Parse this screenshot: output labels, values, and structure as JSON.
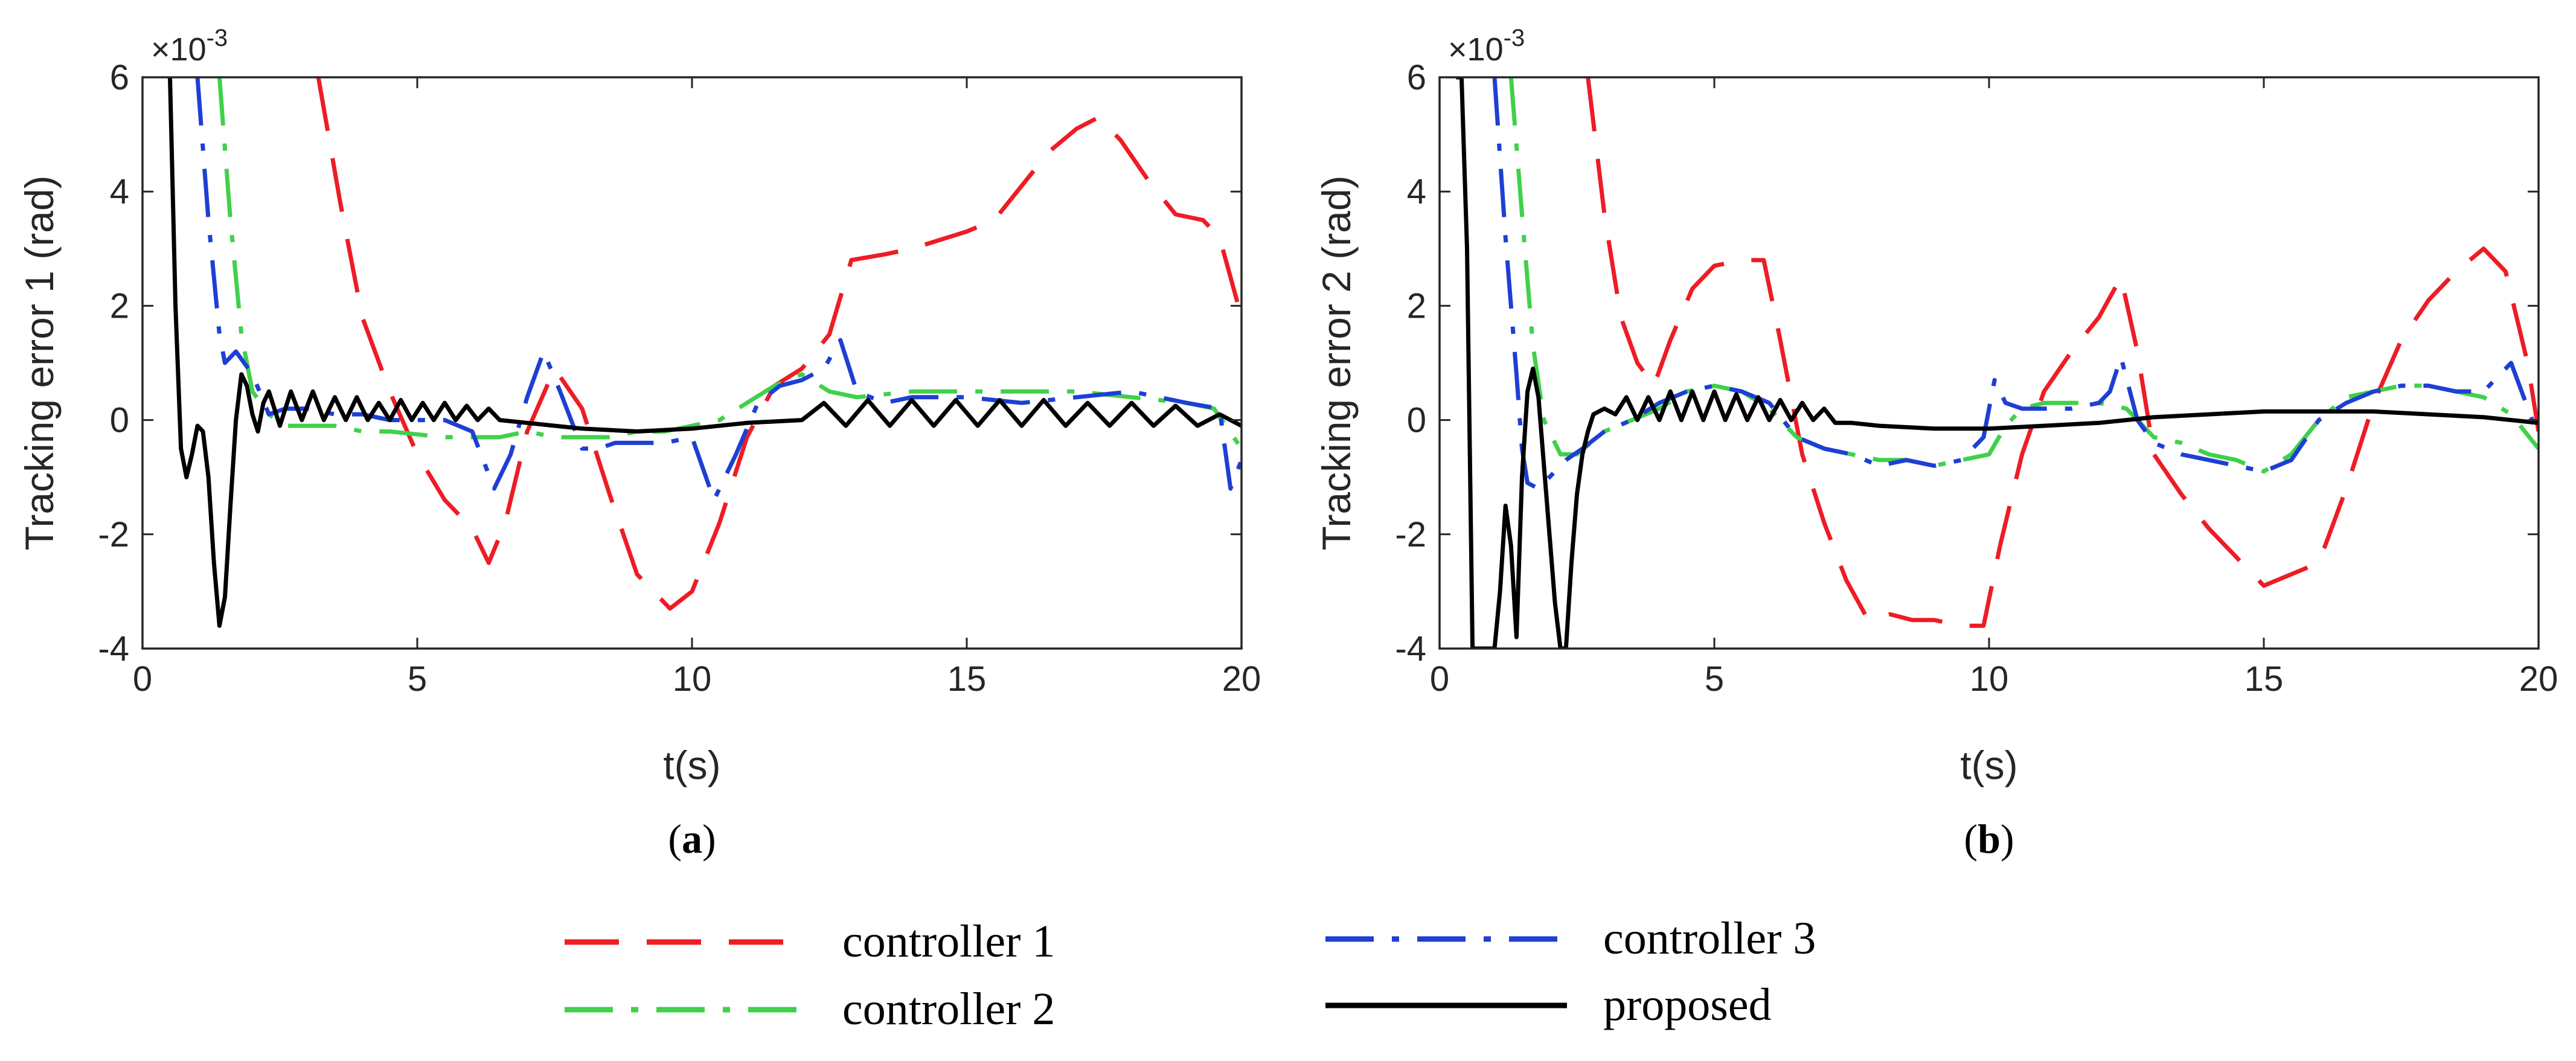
{
  "chart_data": [
    {
      "type": "line",
      "panel_label": "a",
      "ylabel": "Tracking error 1 (rad)",
      "xlabel": "t(s)",
      "exponent": "×10",
      "exponent_power": "-3",
      "xlim": [
        0,
        20
      ],
      "ylim": [
        -4,
        6
      ],
      "xticks": [
        0,
        5,
        10,
        15,
        20
      ],
      "yticks": [
        -4,
        -2,
        0,
        2,
        4,
        6
      ],
      "series": [
        {
          "name": "controller 1",
          "color": "#ee1c25",
          "style": "dashed",
          "x": [
            3.2,
            3.6,
            4.0,
            4.5,
            5.0,
            5.5,
            6.0,
            6.3,
            6.6,
            7.0,
            7.5,
            8.0,
            8.5,
            9.0,
            9.6,
            10.0,
            10.5,
            11.0,
            11.5,
            12.0,
            12.5,
            12.9,
            13.5,
            14.0,
            15.0,
            15.5,
            16.0,
            16.5,
            17.0,
            17.4,
            17.8,
            18.3,
            18.8,
            19.3,
            19.6,
            20.0
          ],
          "y": [
            6.0,
            3.8,
            1.8,
            0.5,
            -0.6,
            -1.4,
            -1.9,
            -2.5,
            -1.8,
            -0.2,
            0.9,
            0.2,
            -1.3,
            -2.7,
            -3.3,
            -3.0,
            -1.8,
            -0.3,
            0.6,
            0.9,
            1.5,
            2.8,
            2.9,
            3.0,
            3.3,
            3.5,
            4.1,
            4.7,
            5.1,
            5.3,
            4.9,
            4.2,
            3.6,
            3.5,
            3.2,
            1.8
          ]
        },
        {
          "name": "controller 2",
          "color": "#3fd14a",
          "style": "dashdot",
          "x": [
            1.4,
            1.6,
            1.8,
            2.0,
            2.3,
            2.6,
            3.0,
            3.5,
            4.0,
            4.5,
            5.0,
            5.5,
            6.0,
            6.5,
            7.0,
            7.5,
            8.0,
            8.5,
            9.0,
            9.5,
            10.0,
            10.5,
            11.0,
            11.5,
            12.0,
            12.5,
            13.0,
            14.0,
            15.0,
            16.0,
            17.0,
            18.0,
            19.0,
            19.5,
            20.0
          ],
          "y": [
            6.0,
            3.5,
            1.5,
            0.5,
            0.1,
            -0.1,
            -0.1,
            -0.1,
            -0.2,
            -0.2,
            -0.25,
            -0.3,
            -0.3,
            -0.3,
            -0.2,
            -0.3,
            -0.3,
            -0.3,
            -0.2,
            -0.2,
            -0.1,
            0.0,
            0.3,
            0.6,
            0.8,
            0.5,
            0.4,
            0.5,
            0.5,
            0.5,
            0.5,
            0.4,
            0.3,
            0.2,
            -0.5
          ]
        },
        {
          "name": "controller 3",
          "color": "#1e3fd4",
          "style": "dashdot",
          "x": [
            1.0,
            1.2,
            1.4,
            1.5,
            1.7,
            2.0,
            2.3,
            2.6,
            3.0,
            3.5,
            4.0,
            4.5,
            5.0,
            5.5,
            6.0,
            6.4,
            6.7,
            7.0,
            7.3,
            7.6,
            8.0,
            8.3,
            8.6,
            9.0,
            9.5,
            10.0,
            10.4,
            10.8,
            11.2,
            11.6,
            12.0,
            12.4,
            12.7,
            13.0,
            13.5,
            14.0,
            15.0,
            16.0,
            17.0,
            18.0,
            19.0,
            19.6,
            19.8,
            20.0
          ],
          "y": [
            6.0,
            3.5,
            1.5,
            1.0,
            1.2,
            0.8,
            0.1,
            0.2,
            0.2,
            0.1,
            0.1,
            0.0,
            0.0,
            0.0,
            -0.2,
            -1.2,
            -0.6,
            0.4,
            1.2,
            0.5,
            -0.5,
            -0.5,
            -0.4,
            -0.4,
            -0.4,
            -0.3,
            -1.4,
            -0.6,
            0.3,
            0.6,
            0.7,
            0.9,
            1.4,
            0.5,
            0.3,
            0.4,
            0.4,
            0.3,
            0.4,
            0.5,
            0.3,
            0.2,
            -1.2,
            -0.7
          ]
        },
        {
          "name": "proposed",
          "color": "#000000",
          "style": "solid",
          "x": [
            0.5,
            0.6,
            0.7,
            0.8,
            0.9,
            1.0,
            1.1,
            1.2,
            1.3,
            1.4,
            1.5,
            1.6,
            1.7,
            1.8,
            1.9,
            2.0,
            2.1,
            2.2,
            2.3,
            2.4,
            2.5,
            2.7,
            2.9,
            3.1,
            3.3,
            3.5,
            3.7,
            3.9,
            4.1,
            4.3,
            4.5,
            4.7,
            4.9,
            5.1,
            5.3,
            5.5,
            5.7,
            5.9,
            6.1,
            6.3,
            6.5,
            7.0,
            8.0,
            9.0,
            10.0,
            11.0,
            12.0,
            12.4,
            12.8,
            13.2,
            13.6,
            14.0,
            14.4,
            14.8,
            15.2,
            15.6,
            16.0,
            16.4,
            16.8,
            17.2,
            17.6,
            18.0,
            18.4,
            18.8,
            19.2,
            19.6,
            20.0
          ],
          "y": [
            6.0,
            2.0,
            -0.5,
            -1.0,
            -0.6,
            -0.1,
            -0.2,
            -1.0,
            -2.5,
            -3.6,
            -3.1,
            -1.5,
            0.0,
            0.8,
            0.6,
            0.1,
            -0.2,
            0.3,
            0.5,
            0.2,
            -0.1,
            0.5,
            0.0,
            0.5,
            0.0,
            0.4,
            0.0,
            0.4,
            0.0,
            0.3,
            0.0,
            0.35,
            0.0,
            0.3,
            0.0,
            0.3,
            0.0,
            0.25,
            0.0,
            0.2,
            0.0,
            -0.05,
            -0.15,
            -0.2,
            -0.15,
            -0.05,
            0.0,
            0.3,
            -0.1,
            0.35,
            -0.1,
            0.35,
            -0.1,
            0.35,
            -0.1,
            0.35,
            -0.1,
            0.35,
            -0.1,
            0.3,
            -0.1,
            0.3,
            -0.1,
            0.25,
            -0.1,
            0.1,
            -0.1
          ]
        }
      ]
    },
    {
      "type": "line",
      "panel_label": "b",
      "ylabel": "Tracking error 2 (rad)",
      "xlabel": "t(s)",
      "exponent": "×10",
      "exponent_power": "-3",
      "xlim": [
        0,
        20
      ],
      "ylim": [
        -4,
        6
      ],
      "xticks": [
        0,
        5,
        10,
        15,
        20
      ],
      "yticks": [
        -4,
        -2,
        0,
        2,
        4,
        6
      ],
      "series": [
        {
          "name": "controller 1",
          "color": "#ee1c25",
          "style": "dashed",
          "x": [
            2.7,
            3.0,
            3.3,
            3.6,
            3.9,
            4.2,
            4.6,
            5.0,
            5.5,
            5.9,
            6.2,
            6.6,
            7.0,
            7.4,
            7.8,
            8.2,
            8.6,
            9.0,
            9.5,
            9.9,
            10.2,
            10.6,
            11.0,
            11.5,
            12.0,
            12.4,
            12.7,
            13.0,
            13.5,
            14.0,
            14.5,
            15.0,
            15.5,
            16.0,
            16.5,
            17.0,
            17.5,
            18.0,
            18.5,
            19.0,
            19.4,
            19.8,
            20.0
          ],
          "y": [
            6.0,
            3.6,
            1.8,
            1.0,
            0.6,
            1.4,
            2.3,
            2.7,
            2.8,
            2.8,
            1.4,
            -0.6,
            -1.8,
            -2.8,
            -3.5,
            -3.4,
            -3.5,
            -3.5,
            -3.6,
            -3.6,
            -2.2,
            -0.6,
            0.5,
            1.2,
            1.8,
            2.5,
            1.2,
            -0.6,
            -1.3,
            -1.9,
            -2.4,
            -2.9,
            -2.7,
            -2.5,
            -1.2,
            0.3,
            1.4,
            2.1,
            2.6,
            3.0,
            2.6,
            1.0,
            -0.2
          ]
        },
        {
          "name": "controller 2",
          "color": "#3fd14a",
          "style": "dashdot",
          "x": [
            1.3,
            1.5,
            1.7,
            1.9,
            2.2,
            2.5,
            3.0,
            3.5,
            4.0,
            4.5,
            5.0,
            5.5,
            6.0,
            6.5,
            7.0,
            7.5,
            8.0,
            8.5,
            9.0,
            9.5,
            10.0,
            10.3,
            10.6,
            11.0,
            11.5,
            12.0,
            12.5,
            13.0,
            13.5,
            14.0,
            14.5,
            15.0,
            15.5,
            16.0,
            16.5,
            17.0,
            17.5,
            18.0,
            18.5,
            19.0,
            19.5,
            20.0
          ],
          "y": [
            6.0,
            3.6,
            1.3,
            0.0,
            -0.6,
            -0.6,
            -0.2,
            0.0,
            0.2,
            0.5,
            0.6,
            0.5,
            0.2,
            -0.3,
            -0.5,
            -0.6,
            -0.7,
            -0.7,
            -0.8,
            -0.7,
            -0.6,
            -0.1,
            0.2,
            0.3,
            0.3,
            0.3,
            0.2,
            -0.3,
            -0.4,
            -0.6,
            -0.7,
            -0.9,
            -0.6,
            0.0,
            0.4,
            0.5,
            0.6,
            0.6,
            0.5,
            0.4,
            0.1,
            -0.5
          ]
        },
        {
          "name": "controller 3",
          "color": "#1e3fd4",
          "style": "dashdot",
          "x": [
            1.0,
            1.2,
            1.4,
            1.5,
            1.6,
            1.8,
            2.0,
            2.3,
            2.6,
            3.0,
            3.5,
            4.0,
            4.5,
            5.0,
            5.5,
            6.0,
            6.5,
            7.0,
            7.5,
            8.0,
            8.5,
            9.0,
            9.5,
            9.9,
            10.1,
            10.3,
            10.6,
            11.0,
            11.5,
            12.0,
            12.2,
            12.4,
            12.7,
            13.0,
            13.5,
            14.0,
            14.5,
            15.0,
            15.5,
            16.0,
            16.5,
            17.0,
            17.5,
            18.0,
            18.5,
            19.0,
            19.5,
            20.0
          ],
          "y": [
            6.0,
            3.2,
            0.8,
            -0.5,
            -1.1,
            -1.2,
            -1.0,
            -0.7,
            -0.5,
            -0.2,
            0.0,
            0.3,
            0.5,
            0.6,
            0.5,
            0.3,
            -0.3,
            -0.5,
            -0.6,
            -0.8,
            -0.7,
            -0.8,
            -0.7,
            -0.3,
            0.7,
            0.3,
            0.2,
            0.2,
            0.2,
            0.3,
            0.5,
            1.1,
            0.0,
            -0.4,
            -0.6,
            -0.7,
            -0.8,
            -0.9,
            -0.7,
            0.0,
            0.3,
            0.5,
            0.6,
            0.6,
            0.5,
            0.5,
            1.0,
            -0.3
          ]
        },
        {
          "name": "proposed",
          "color": "#000000",
          "style": "solid",
          "x": [
            0.3,
            0.4,
            0.5,
            0.6,
            0.7,
            0.8,
            0.9,
            1.0,
            1.1,
            1.2,
            1.3,
            1.4,
            1.5,
            1.6,
            1.7,
            1.8,
            1.9,
            2.0,
            2.1,
            2.2,
            2.3,
            2.4,
            2.5,
            2.6,
            2.7,
            2.8,
            3.0,
            3.2,
            3.4,
            3.6,
            3.8,
            4.0,
            4.2,
            4.4,
            4.6,
            4.8,
            5.0,
            5.2,
            5.4,
            5.6,
            5.8,
            6.0,
            6.2,
            6.4,
            6.6,
            6.8,
            7.0,
            7.2,
            7.5,
            8.0,
            9.0,
            10.0,
            11.0,
            12.0,
            13.0,
            14.0,
            15.0,
            16.0,
            17.0,
            18.0,
            19.0,
            20.0
          ],
          "y": [
            6.0,
            6.0,
            3.0,
            -4.0,
            -4.0,
            -4.0,
            -4.0,
            -4.0,
            -3.0,
            -1.5,
            -2.2,
            -3.8,
            -1.0,
            0.5,
            0.9,
            0.4,
            -0.8,
            -2.0,
            -3.2,
            -4.0,
            -4.0,
            -2.5,
            -1.3,
            -0.6,
            -0.2,
            0.1,
            0.2,
            0.1,
            0.4,
            0.0,
            0.4,
            0.0,
            0.5,
            0.0,
            0.5,
            0.0,
            0.5,
            0.0,
            0.45,
            0.0,
            0.4,
            0.0,
            0.35,
            0.0,
            0.3,
            0.0,
            0.2,
            -0.05,
            -0.05,
            -0.1,
            -0.15,
            -0.15,
            -0.1,
            -0.05,
            0.05,
            0.1,
            0.15,
            0.15,
            0.15,
            0.1,
            0.05,
            -0.05
          ]
        }
      ]
    }
  ],
  "legend": [
    {
      "name": "controller 1",
      "color": "#ee1c25",
      "style": "dashed"
    },
    {
      "name": "controller 3",
      "color": "#1e3fd4",
      "style": "dashdot"
    },
    {
      "name": "controller 2",
      "color": "#3fd14a",
      "style": "dashdot"
    },
    {
      "name": "proposed",
      "color": "#000000",
      "style": "solid"
    }
  ]
}
